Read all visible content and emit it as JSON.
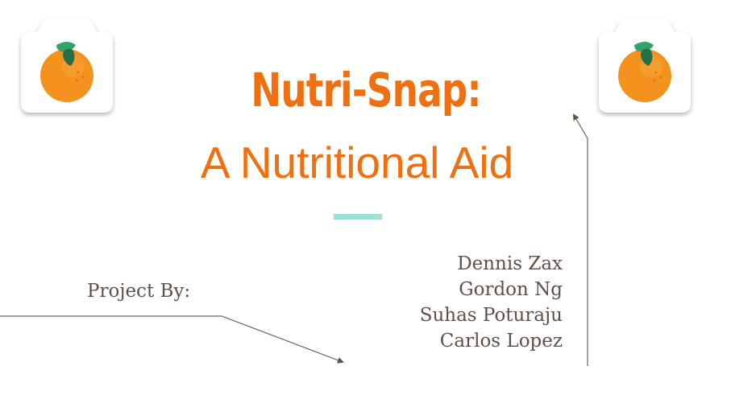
{
  "slide": {
    "title_main": "Nutri-Snap:",
    "title_sub": "A Nutritional Aid",
    "project_by_label": "Project By:",
    "authors": [
      "Dennis Zax",
      "Gordon Ng",
      "Suhas Poturaju",
      "Carlos Lopez"
    ]
  },
  "icons": {
    "left_logo": "camera-orange-icon",
    "right_logo": "camera-orange-icon"
  },
  "colors": {
    "title": "#f07011",
    "accent_bar": "#9fe0d6",
    "body_text": "#5e5048",
    "orange_fruit": "#f4921e",
    "leaf": "#2f8f5e"
  }
}
